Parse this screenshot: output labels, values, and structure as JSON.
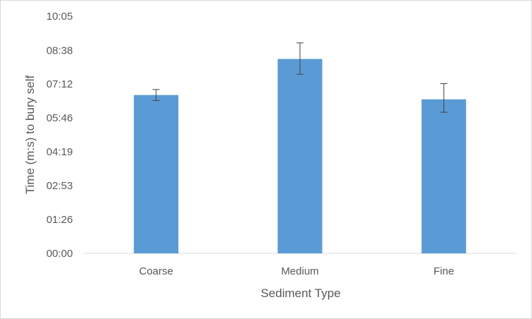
{
  "chart_data": {
    "type": "bar",
    "title": "",
    "xlabel": "Sediment Type",
    "ylabel": "Time (m:s) to bury self",
    "categories": [
      "Coarse",
      "Medium",
      "Fine"
    ],
    "values_seconds": [
      404,
      496,
      393
    ],
    "error_seconds": [
      [
        390,
        418
      ],
      [
        457,
        537
      ],
      [
        360,
        433
      ]
    ],
    "yticks_seconds": [
      0,
      86,
      173,
      259,
      346,
      432,
      518,
      605
    ],
    "ytick_labels": [
      "00:00",
      "01:26",
      "02:53",
      "04:19",
      "05:46",
      "07:12",
      "08:38",
      "10:05"
    ],
    "ylim_seconds": [
      0,
      605
    ],
    "grid": false,
    "legend": "none",
    "colors": {
      "bar": "#5b9bd5",
      "axis": "#d9d9d9",
      "error": "#404040"
    }
  }
}
